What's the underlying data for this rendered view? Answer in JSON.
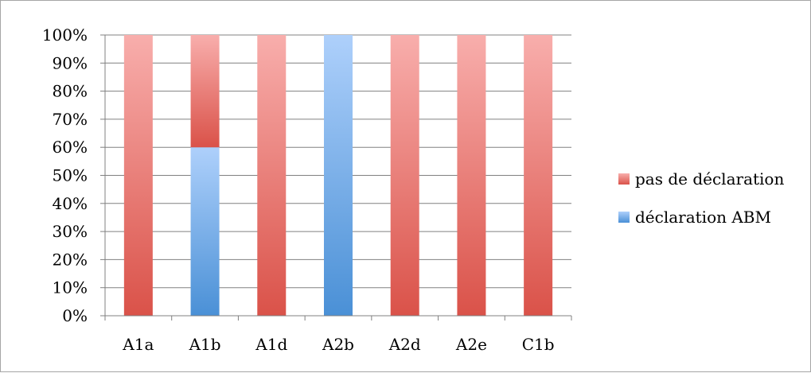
{
  "chart_data": {
    "type": "bar",
    "stacked": true,
    "percent": true,
    "categories": [
      "A1a",
      "A1b",
      "A1d",
      "A2b",
      "A2d",
      "A2e",
      "C1b"
    ],
    "series": [
      {
        "name": "déclaration ABM",
        "values": [
          0,
          60,
          0,
          100,
          0,
          0,
          0
        ],
        "color": "#5b9bd5"
      },
      {
        "name": "pas de déclaration",
        "values": [
          100,
          40,
          100,
          0,
          100,
          100,
          100
        ],
        "color": "#e05a50"
      }
    ],
    "y_ticks": [
      "0%",
      "10%",
      "20%",
      "30%",
      "40%",
      "50%",
      "60%",
      "70%",
      "80%",
      "90%",
      "100%"
    ],
    "ylim": [
      0,
      100
    ],
    "grid": true,
    "legend_position": "right",
    "legend": [
      "pas de déclaration",
      "déclaration ABM"
    ]
  }
}
